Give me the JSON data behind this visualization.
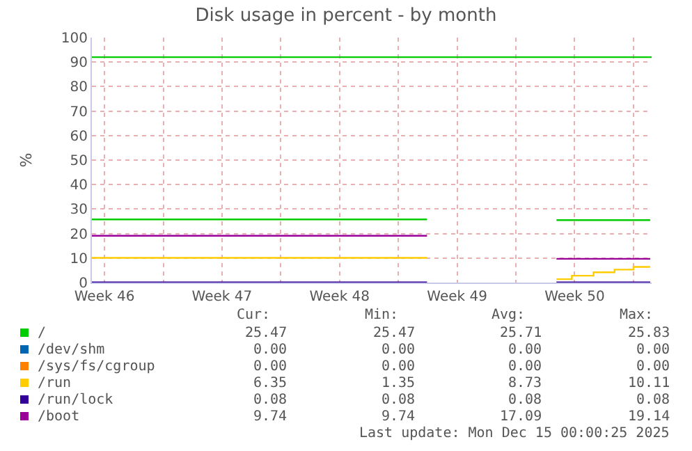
{
  "chart_data": {
    "type": "line",
    "title": "Disk usage in percent - by month",
    "ylabel": "%",
    "x": [
      "2025-11-12T18:00",
      "2025-12-02T17:00",
      "2025-12-06T00:00",
      "2025-12-10T10:00",
      "2025-12-16T00:00"
    ],
    "series": [
      {
        "name": "/",
        "color": "#00cc00",
        "values": [
          25.8,
          25.8,
          null,
          25.5,
          25.5
        ]
      },
      {
        "name": "/dev/shm",
        "color": "#0066b3",
        "values": [
          null,
          null,
          null,
          null,
          null
        ]
      },
      {
        "name": "/sys/fs/cgroup",
        "color": "#ff8000",
        "values": [
          null,
          null,
          null,
          null,
          null
        ]
      },
      {
        "name": "/run",
        "color": "#ffcc00",
        "type": "step",
        "x": [
          "2025-11-12T18:00",
          "2025-12-02T17:00",
          "2025-12-06T00:00",
          "2025-12-10T10:00",
          "2025-12-11T08:00",
          "2025-12-12T15:00",
          "2025-12-13T21:00",
          "2025-12-15T00:00",
          "2025-12-16T00:00"
        ],
        "values": [
          10.1,
          10.1,
          null,
          1.4,
          2.8,
          4.2,
          5.3,
          6.4,
          6.4
        ]
      },
      {
        "name": "/run/lock",
        "color": "#330099",
        "values": [
          0.1,
          0.1,
          null,
          0.1,
          0.1
        ]
      },
      {
        "name": "/boot",
        "color": "#990099",
        "values": [
          19.1,
          19.1,
          null,
          9.7,
          9.7
        ]
      }
    ],
    "ref_lines": [
      {
        "axis": "y",
        "value": 92,
        "color": "#00cc00"
      }
    ],
    "xlim": [
      "2025-11-12T18:00",
      "2025-12-16T02:00"
    ],
    "xticks": [
      {
        "value": "2025-11-13T12:00",
        "label": "Week 46"
      },
      {
        "value": "2025-11-17",
        "label": null
      },
      {
        "value": "2025-11-20T12:00",
        "label": "Week 47"
      },
      {
        "value": "2025-11-24",
        "label": null
      },
      {
        "value": "2025-11-27T12:00",
        "label": "Week 48"
      },
      {
        "value": "2025-12-01",
        "label": null
      },
      {
        "value": "2025-12-04T12:00",
        "label": "Week 49"
      },
      {
        "value": "2025-12-08",
        "label": null
      },
      {
        "value": "2025-12-11T12:00",
        "label": "Week 50"
      },
      {
        "value": "2025-12-15",
        "label": null
      }
    ],
    "ylim": [
      0,
      100
    ],
    "yticks": [
      0,
      10,
      20,
      30,
      40,
      50,
      60,
      70,
      80,
      90,
      100
    ],
    "grid": true,
    "legend": "bottom",
    "annotations": [
      "Cur:",
      "Min:",
      "Avg:",
      "Max:",
      "25.47",
      "25.47",
      "25.71",
      "25.83",
      "0.00",
      "0.00",
      "0.00",
      "0.00",
      "0.00",
      "0.00",
      "0.00",
      "0.00",
      "6.35",
      "1.35",
      "8.73",
      "10.11",
      "0.08",
      "0.08",
      "0.08",
      "0.08",
      "9.74",
      "9.74",
      "17.09",
      "19.14",
      "Last update: Mon Dec 15 00:00:25 2025"
    ]
  }
}
